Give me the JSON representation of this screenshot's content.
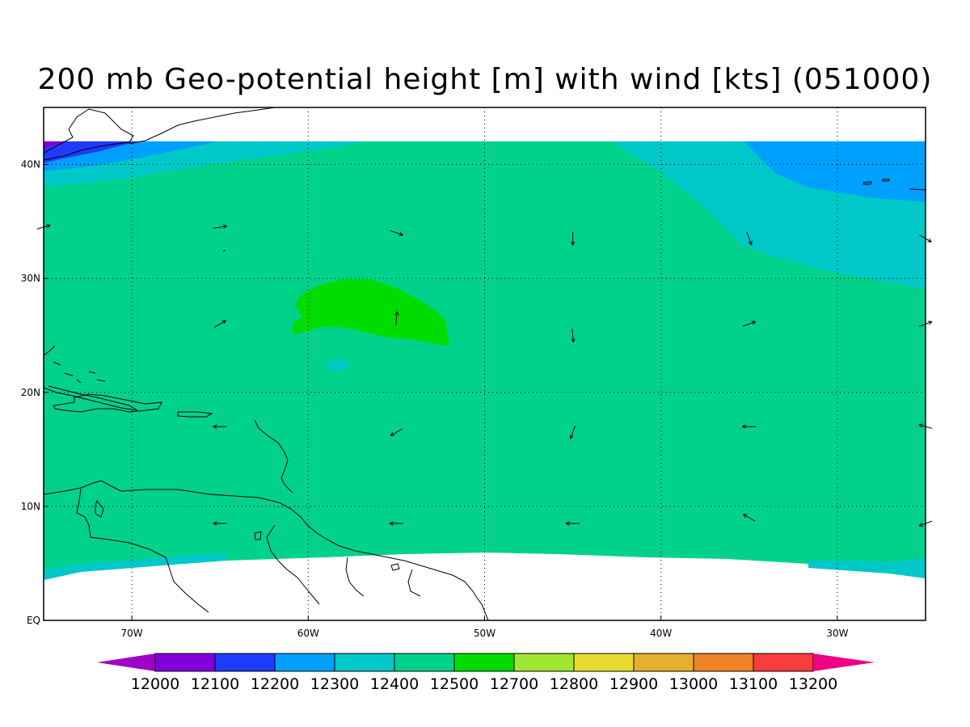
{
  "title": "200 mb Geo-potential height [m] with wind [kts] (051000)",
  "map": {
    "lon_range": [
      -75,
      -25
    ],
    "lat_range": [
      0,
      45
    ],
    "x_ticks": [
      {
        "lon": -70,
        "label": "70W"
      },
      {
        "lon": -60,
        "label": "60W"
      },
      {
        "lon": -50,
        "label": "50W"
      },
      {
        "lon": -40,
        "label": "40W"
      },
      {
        "lon": -30,
        "label": "30W"
      }
    ],
    "y_ticks": [
      {
        "lat": 0,
        "label": "EQ"
      },
      {
        "lat": 10,
        "label": "10N"
      },
      {
        "lat": 20,
        "label": "20N"
      },
      {
        "lat": 30,
        "label": "30N"
      },
      {
        "lat": 40,
        "label": "40N"
      }
    ],
    "grid": "dotted",
    "wind_vectors": [
      {
        "lon": -75,
        "lat": 34.5,
        "dir_deg": 75
      },
      {
        "lon": -65,
        "lat": 34.5,
        "dir_deg": 80
      },
      {
        "lon": -55,
        "lat": 34,
        "dir_deg": 110
      },
      {
        "lon": -45,
        "lat": 33.5,
        "dir_deg": 180
      },
      {
        "lon": -35,
        "lat": 33.5,
        "dir_deg": 160
      },
      {
        "lon": -25,
        "lat": 33.5,
        "dir_deg": 120
      },
      {
        "lon": -65,
        "lat": 26,
        "dir_deg": 60
      },
      {
        "lon": -55,
        "lat": 26.5,
        "dir_deg": 5
      },
      {
        "lon": -45,
        "lat": 25,
        "dir_deg": 175
      },
      {
        "lon": -35,
        "lat": 26,
        "dir_deg": 70
      },
      {
        "lon": -25,
        "lat": 26,
        "dir_deg": 70
      },
      {
        "lon": -65,
        "lat": 17,
        "dir_deg": 270
      },
      {
        "lon": -55,
        "lat": 16.5,
        "dir_deg": 240
      },
      {
        "lon": -45,
        "lat": 16.5,
        "dir_deg": 200
      },
      {
        "lon": -35,
        "lat": 17,
        "dir_deg": 270
      },
      {
        "lon": -25,
        "lat": 17,
        "dir_deg": 285
      },
      {
        "lon": -65,
        "lat": 8.5,
        "dir_deg": 270
      },
      {
        "lon": -55,
        "lat": 8.5,
        "dir_deg": 270
      },
      {
        "lon": -45,
        "lat": 8.5,
        "dir_deg": 270
      },
      {
        "lon": -35,
        "lat": 9,
        "dir_deg": 300
      },
      {
        "lon": -25,
        "lat": 8.5,
        "dir_deg": 250
      }
    ]
  },
  "colorbar": {
    "labels": [
      "12000",
      "12100",
      "12200",
      "12300",
      "12400",
      "12500",
      "12700",
      "12800",
      "12900",
      "13000",
      "13100",
      "13200"
    ],
    "colors": [
      "#a000c8",
      "#8200dc",
      "#1e3cff",
      "#00a0ff",
      "#00c8c8",
      "#00d28c",
      "#00dc00",
      "#a0e632",
      "#e6dc32",
      "#e6af2d",
      "#f08228",
      "#fa3c3c",
      "#f00082"
    ]
  },
  "colors": {
    "field_12400": "#00c8c8",
    "field_12500": "#00d28c",
    "field_12700": "#00dc00",
    "field_12300": "#00a0ff",
    "field_12200": "#1e3cff",
    "field_12100": "#8200dc"
  }
}
